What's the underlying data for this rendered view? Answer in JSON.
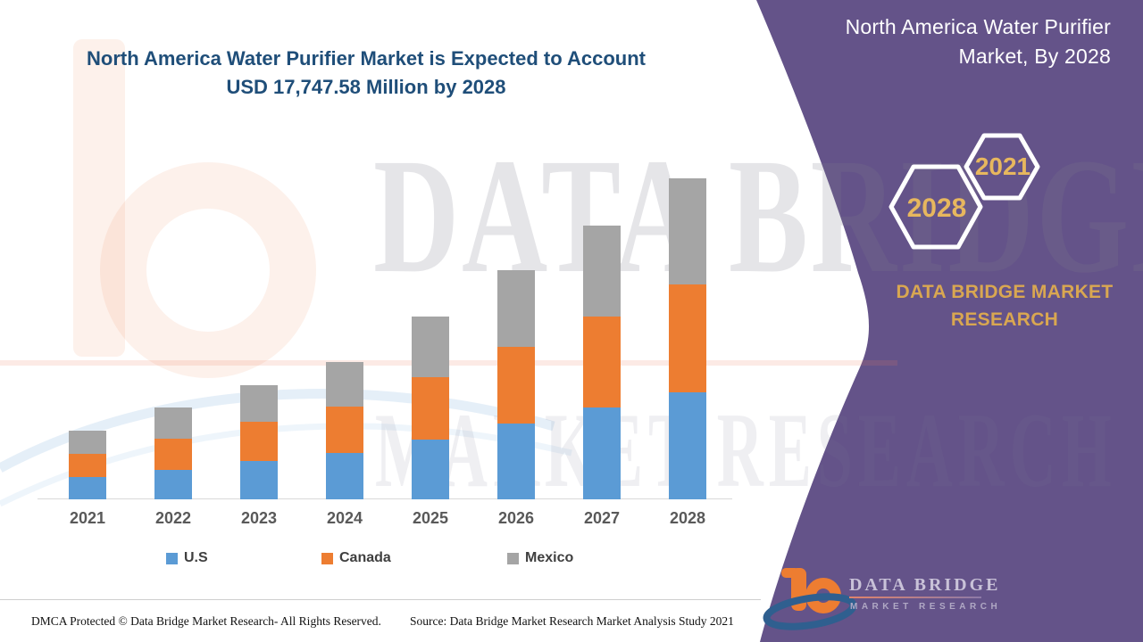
{
  "header": {
    "title_line1": "North America Water Purifier Market is Expected to Account",
    "title_line2": "USD 17,747.58 Million by 2028"
  },
  "side_panel": {
    "title_line1": "North America Water Purifier",
    "title_line2": "Market, By 2028",
    "hexagons": [
      {
        "label": "2028"
      },
      {
        "label": "2021"
      }
    ],
    "brand_line1": "DATA BRIDGE MARKET",
    "brand_line2": "RESEARCH",
    "logo_wordmark": "DATA BRIDGE",
    "logo_subtext": "MARKET RESEARCH",
    "panel_color": "#645389",
    "accent_gold": "#E7B75E"
  },
  "watermark": {
    "line1": "DATA BRIDGE",
    "line2": "MARKET RESEARCH"
  },
  "chart_data": {
    "type": "bar",
    "stacked": true,
    "title": "North America Water Purifier Market is Expected to Account USD 17,747.58 Million by 2028",
    "value_unit": "USD Million",
    "total_2028": 17747.58,
    "categories": [
      "2021",
      "2022",
      "2023",
      "2024",
      "2025",
      "2026",
      "2027",
      "2028"
    ],
    "series": [
      {
        "name": "U.S",
        "color": "#5B9BD5",
        "values": [
          1230,
          1630,
          2120,
          2560,
          3300,
          4190,
          5080,
          5920
        ]
      },
      {
        "name": "Canada",
        "color": "#ED7D31",
        "values": [
          1280,
          1730,
          2170,
          2560,
          3450,
          4240,
          5030,
          5970
        ]
      },
      {
        "name": "Mexico",
        "color": "#A5A5A5",
        "values": [
          1290,
          1720,
          2020,
          2470,
          3360,
          4240,
          5030,
          5857.58
        ]
      }
    ],
    "approx_totals": [
      3800,
      5080,
      6310,
      7590,
      10110,
      12670,
      15140,
      17747.58
    ],
    "legend_position": "bottom",
    "gridlines": false,
    "y_axis_visible": false,
    "x_axis_line_color": "#d9d9d9"
  },
  "footer": {
    "left": "DMCA Protected © Data Bridge Market Research- All Rights Reserved.",
    "right": "Source: Data Bridge Market Research Market Analysis Study 2021"
  }
}
